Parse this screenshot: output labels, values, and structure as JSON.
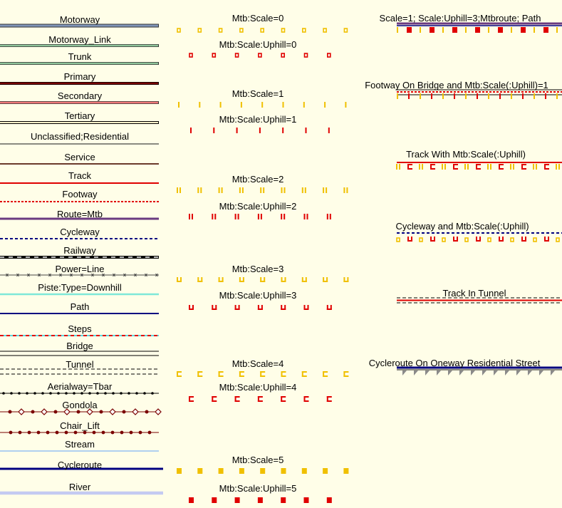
{
  "left": [
    {
      "label": "Motorway",
      "style": "motorway"
    },
    {
      "label": "Motorway_Link",
      "style": "motorway_link"
    },
    {
      "label": "Trunk",
      "style": "trunk"
    },
    {
      "label": "Primary",
      "style": "primary"
    },
    {
      "label": "Secondary",
      "style": "secondary"
    },
    {
      "label": "Tertiary",
      "style": "tertiary"
    },
    {
      "label": "Unclassified;Residential",
      "style": "residential"
    },
    {
      "label": "Service",
      "style": "service"
    },
    {
      "label": "Track",
      "style": "track"
    },
    {
      "label": "Footway",
      "style": "footway"
    },
    {
      "label": "Route=Mtb",
      "style": "mtb"
    },
    {
      "label": "Cycleway",
      "style": "cycleway"
    },
    {
      "label": "Railway",
      "style": "railway"
    },
    {
      "label": "Power=Line",
      "style": "power"
    },
    {
      "label": "Piste:Type=Downhill",
      "style": "piste"
    },
    {
      "label": "Path",
      "style": "path"
    },
    {
      "label": "Steps",
      "style": "steps"
    },
    {
      "label": "Bridge",
      "style": "bridge"
    },
    {
      "label": "Tunnel",
      "style": "tunnel"
    },
    {
      "label": "Aerialway=Tbar",
      "style": "tbar"
    },
    {
      "label": "Gondola",
      "style": "gondola"
    },
    {
      "label": "Chair_Lift",
      "style": "chairlift"
    },
    {
      "label": "Stream",
      "style": "stream"
    },
    {
      "label": "Cycleroute",
      "style": "cycleroute"
    },
    {
      "label": "River",
      "style": "river"
    }
  ],
  "middle": [
    {
      "label": "Mtb:Scale=0",
      "level": 0,
      "uphill": false
    },
    {
      "label": "Mtb:Scale:Uphill=0",
      "level": 0,
      "uphill": true
    },
    {
      "label": "Mtb:Scale=1",
      "level": 1,
      "uphill": false
    },
    {
      "label": "Mtb:Scale:Uphill=1",
      "level": 1,
      "uphill": true
    },
    {
      "label": "Mtb:Scale=2",
      "level": 2,
      "uphill": false
    },
    {
      "label": "Mtb:Scale:Uphill=2",
      "level": 2,
      "uphill": true
    },
    {
      "label": "Mtb:Scale=3",
      "level": 3,
      "uphill": false
    },
    {
      "label": "Mtb:Scale:Uphill=3",
      "level": 3,
      "uphill": true
    },
    {
      "label": "Mtb:Scale=4",
      "level": 4,
      "uphill": false
    },
    {
      "label": "Mtb:Scale:Uphill=4",
      "level": 4,
      "uphill": true
    },
    {
      "label": "Mtb:Scale=5",
      "level": 5,
      "uphill": false
    },
    {
      "label": "Mtb:Scale:Uphill=5",
      "level": 5,
      "uphill": true
    }
  ],
  "right": [
    {
      "label": "Scale=1; Scale:Uphill=3;Mtbroute; Path"
    },
    {
      "label": "Footway On Bridge and Mtb:Scale(:Uphill)=1"
    },
    {
      "label": "Track With Mtb:Scale(:Uphill)"
    },
    {
      "label": "Cycleway and Mtb:Scale(:Uphill)"
    },
    {
      "label": "Track In Tunnel"
    },
    {
      "label": "Cycleroute On Oneway Residential Street"
    }
  ],
  "colors": {
    "scale": "#f0c000",
    "uphill": "#e00000",
    "background": "#fffee8"
  }
}
